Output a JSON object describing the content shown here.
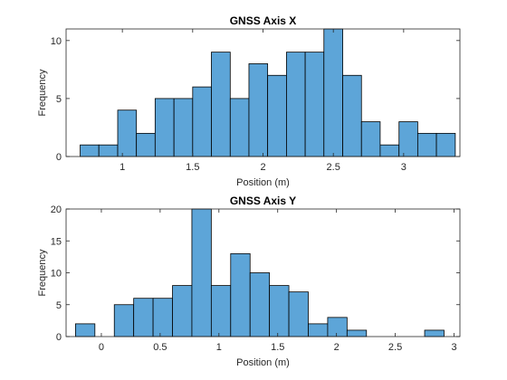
{
  "chart_data": [
    {
      "type": "bar",
      "title": "GNSS Axis X",
      "xlabel": "Position (m)",
      "ylabel": "Frequency",
      "bin_edges": [
        0.7,
        0.833,
        0.967,
        1.1,
        1.233,
        1.367,
        1.5,
        1.633,
        1.767,
        1.9,
        2.033,
        2.167,
        2.3,
        2.433,
        2.567,
        2.7,
        2.833,
        2.967,
        3.1,
        3.233,
        3.367
      ],
      "values": [
        1,
        1,
        4,
        2,
        5,
        5,
        6,
        9,
        5,
        8,
        7,
        9,
        9,
        11,
        7,
        3,
        1,
        3,
        2,
        2
      ],
      "xlim": [
        0.6,
        3.4
      ],
      "ylim": [
        0,
        11
      ],
      "xticks": [
        1,
        1.5,
        2,
        2.5,
        3
      ],
      "xticklabels": [
        "1",
        "1.5",
        "2",
        "2.5",
        "3"
      ],
      "yticks": [
        0,
        5,
        10
      ],
      "yticklabels": [
        "0",
        "5",
        "10"
      ]
    },
    {
      "type": "bar",
      "title": "GNSS Axis Y",
      "xlabel": "Position (m)",
      "ylabel": "Frequency",
      "bin_edges": [
        -0.22,
        -0.055,
        0.11,
        0.275,
        0.44,
        0.605,
        0.77,
        0.935,
        1.1,
        1.265,
        1.43,
        1.595,
        1.76,
        1.925,
        2.09,
        2.255,
        2.42,
        2.585,
        2.75,
        2.915
      ],
      "values": [
        2,
        0,
        5,
        6,
        6,
        8,
        20,
        8,
        13,
        10,
        8,
        7,
        2,
        3,
        1,
        0,
        0,
        0,
        1
      ],
      "xlim": [
        -0.3,
        3.05
      ],
      "ylim": [
        0,
        20
      ],
      "xticks": [
        0,
        0.5,
        1,
        1.5,
        2,
        2.5,
        3
      ],
      "xticklabels": [
        "0",
        "0.5",
        "1",
        "1.5",
        "2",
        "2.5",
        "3"
      ],
      "yticks": [
        0,
        5,
        10,
        15,
        20
      ],
      "yticklabels": [
        "0",
        "5",
        "10",
        "15",
        "20"
      ]
    }
  ]
}
